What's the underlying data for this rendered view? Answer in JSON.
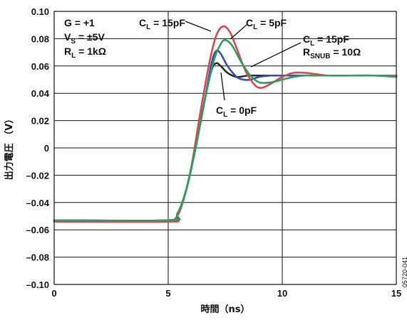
{
  "chart_data": {
    "type": "line",
    "xlabel": "時間（ns）",
    "ylabel": "出力電圧 （V）",
    "xlim": [
      0,
      15
    ],
    "ylim": [
      -0.1,
      0.1
    ],
    "x_ticks": [
      0,
      5,
      10,
      15
    ],
    "y_ticks": [
      -0.1,
      -0.08,
      -0.06,
      -0.04,
      -0.02,
      0,
      0.02,
      0.04,
      0.06,
      0.08,
      0.1
    ],
    "x_tick_labels": [
      "0",
      "5",
      "10",
      "15"
    ],
    "y_tick_labels": [
      "–0.10",
      "–0.08",
      "–0.06",
      "–0.04",
      "–0.02",
      "0",
      "0.02",
      "0.04",
      "0.06",
      "0.08",
      "0.10"
    ],
    "grid": true,
    "conditions": [
      {
        "main": "G = +1",
        "sub": "",
        "tail": ""
      },
      {
        "main": "V",
        "sub": "S",
        "tail": " = ±5V"
      },
      {
        "main": "R",
        "sub": "L",
        "tail": " = 1kΩ"
      }
    ],
    "curve_labels": [
      {
        "main": "C",
        "sub": "L",
        "tail": " = 15pF"
      },
      {
        "main": "C",
        "sub": "L",
        "tail": " = 5pF"
      },
      {
        "main": "C",
        "sub": "L",
        "tail": " = 15pF"
      },
      {
        "main": "R",
        "sub": "SNUB",
        "tail": " = 10Ω"
      },
      {
        "main": "C",
        "sub": "L",
        "tail": " = 0pF"
      }
    ],
    "figure_id": "05720-041",
    "series": [
      {
        "color": "#2b2b2b",
        "x": [
          0,
          5,
          5.4,
          5.8,
          6.2,
          6.6,
          6.9,
          7.1,
          7.3,
          7.6,
          8.0,
          8.5,
          9.0,
          10,
          11,
          12,
          13,
          14,
          15
        ],
        "y": [
          -0.053,
          -0.053,
          -0.049,
          -0.03,
          0.0,
          0.035,
          0.057,
          0.062,
          0.06,
          0.055,
          0.052,
          0.053,
          0.053,
          0.053,
          0.053,
          0.053,
          0.053,
          0.053,
          0.053
        ]
      },
      {
        "color": "#3a4bb0",
        "x": [
          0,
          5,
          5.4,
          5.8,
          6.2,
          6.6,
          6.9,
          7.1,
          7.3,
          7.6,
          8.0,
          8.3,
          8.6,
          9.0,
          9.5,
          10,
          11,
          12,
          13,
          14,
          15
        ],
        "y": [
          -0.053,
          -0.053,
          -0.049,
          -0.03,
          0.0,
          0.035,
          0.062,
          0.071,
          0.069,
          0.06,
          0.052,
          0.05,
          0.05,
          0.052,
          0.053,
          0.053,
          0.053,
          0.053,
          0.053,
          0.053,
          0.053
        ]
      },
      {
        "color": "#d94652",
        "x": [
          0,
          5,
          5.3,
          5.6,
          6.0,
          6.4,
          6.8,
          7.1,
          7.4,
          7.7,
          8.0,
          8.4,
          8.8,
          9.1,
          9.5,
          10,
          10.5,
          11,
          11.5,
          12,
          13,
          14,
          15
        ],
        "y": [
          -0.054,
          -0.054,
          -0.052,
          -0.042,
          -0.015,
          0.025,
          0.062,
          0.082,
          0.089,
          0.085,
          0.073,
          0.056,
          0.046,
          0.044,
          0.047,
          0.052,
          0.055,
          0.055,
          0.054,
          0.053,
          0.053,
          0.053,
          0.053
        ]
      },
      {
        "color": "#2aa05a",
        "x": [
          0,
          5,
          5.4,
          5.8,
          6.2,
          6.6,
          7.0,
          7.3,
          7.5,
          7.8,
          8.2,
          8.6,
          9.0,
          9.5,
          10,
          10.5,
          11,
          12,
          13,
          14,
          15
        ],
        "y": [
          -0.053,
          -0.053,
          -0.048,
          -0.03,
          0.0,
          0.035,
          0.064,
          0.076,
          0.079,
          0.075,
          0.063,
          0.053,
          0.048,
          0.048,
          0.05,
          0.052,
          0.053,
          0.053,
          0.053,
          0.053,
          0.052
        ]
      }
    ]
  }
}
